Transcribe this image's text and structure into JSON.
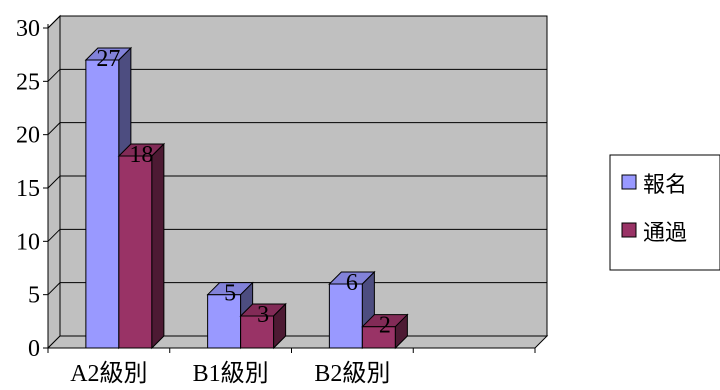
{
  "chart_data": {
    "type": "bar",
    "title": "",
    "xlabel": "",
    "ylabel": "",
    "categories": [
      "A2級別",
      "B1級別",
      "B2級別"
    ],
    "series": [
      {
        "name": "報名",
        "values": [
          27,
          5,
          6
        ]
      },
      {
        "name": "通過",
        "values": [
          18,
          3,
          2
        ]
      }
    ],
    "ylim": [
      0,
      30
    ],
    "yticks": [
      0,
      5,
      10,
      15,
      20,
      25,
      30
    ],
    "grid": true,
    "legend_position": "right",
    "colors": {
      "series": [
        "#9999ff",
        "#993366"
      ],
      "wall": "#c0c0c0",
      "grid": "#000000"
    }
  }
}
